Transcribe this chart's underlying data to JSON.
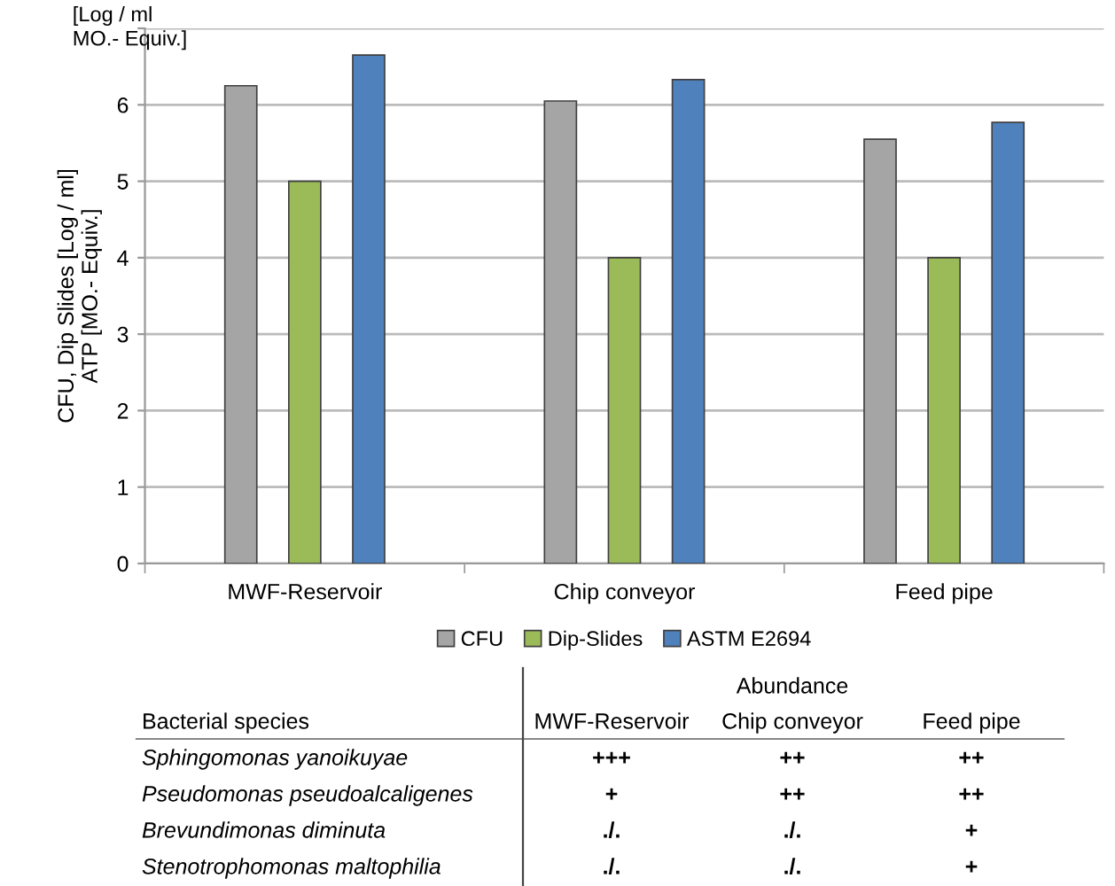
{
  "chart_data": {
    "type": "bar",
    "ylabel": "CFU, Dip Slides [Log / ml]\nATP [MO.- Equiv.]",
    "categories": [
      "MWF-Reservoir",
      "Chip conveyor",
      "Feed pipe"
    ],
    "series": [
      {
        "name": "CFU",
        "color": "#a5a5a5",
        "values": [
          6.25,
          6.05,
          5.55
        ]
      },
      {
        "name": "Dip-Slides",
        "color": "#9bbb59",
        "values": [
          5,
          4,
          4
        ]
      },
      {
        "name": "ASTM E2694",
        "color": "#4f81bd",
        "values": [
          6.65,
          6.33,
          5.77
        ]
      }
    ],
    "ylim": [
      0,
      7
    ],
    "yticks": [
      0,
      1,
      2,
      3,
      4,
      5,
      6,
      {
        "value": 7,
        "label": null
      }
    ],
    "grid": "y",
    "legend": "bottom",
    "annotations": [
      "[Log / ml\nMO.- Equiv.]",
      "Abundance",
      "Bacterial species",
      "MWF-Reservoir",
      "Chip conveyor",
      "Feed pipe",
      "Sphingomonas yanoikuyae",
      "+++",
      "++",
      "++",
      "Pseudomonas pseudoalcaligenes",
      "+",
      "++",
      "++",
      "Brevundimonas diminuta",
      "./.",
      "./.",
      "+",
      "Stenotrophomonas maltophilia",
      "./.",
      "./.",
      "+"
    ]
  }
}
